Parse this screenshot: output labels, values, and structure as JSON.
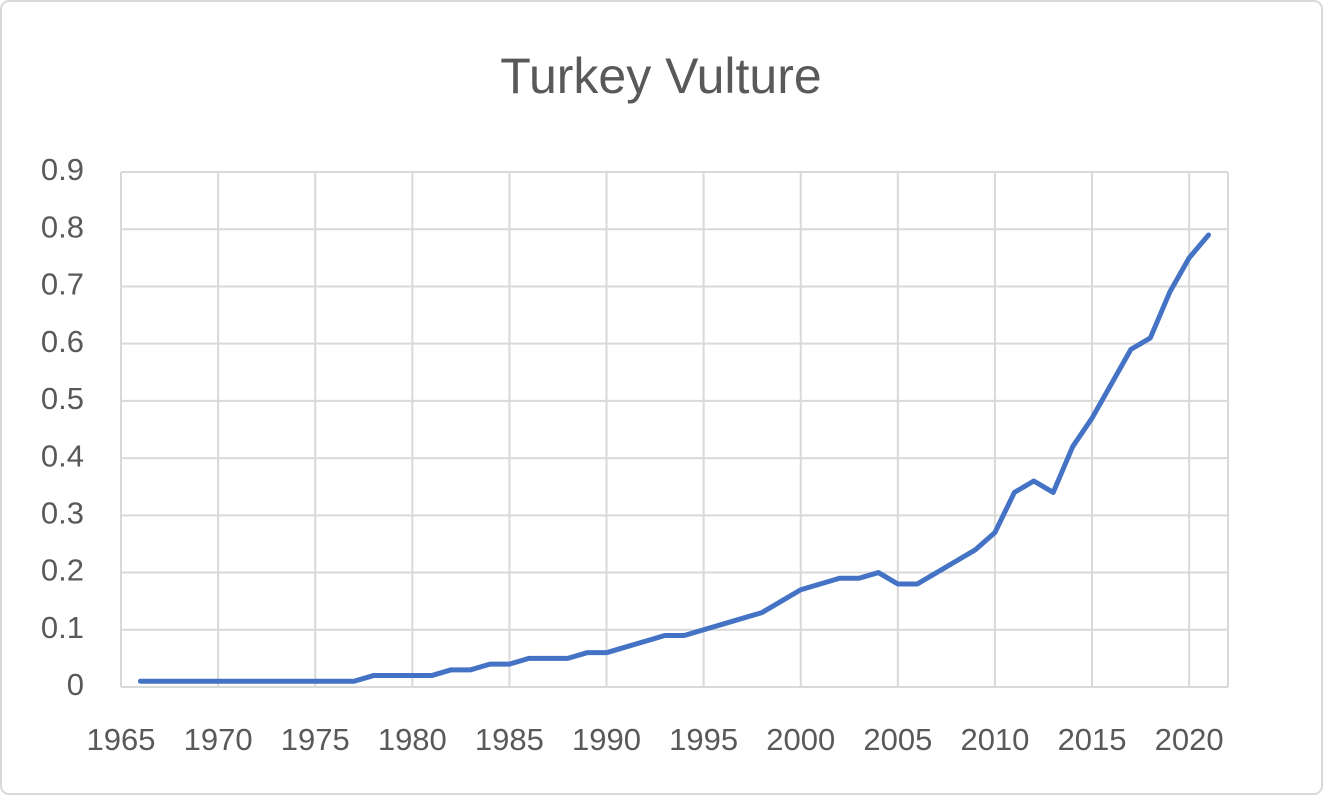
{
  "chart_data": {
    "type": "line",
    "title": "Turkey Vulture",
    "x": [
      1966,
      1967,
      1968,
      1969,
      1970,
      1971,
      1972,
      1973,
      1974,
      1975,
      1976,
      1977,
      1978,
      1979,
      1980,
      1981,
      1982,
      1983,
      1984,
      1985,
      1986,
      1987,
      1988,
      1989,
      1990,
      1991,
      1992,
      1993,
      1994,
      1995,
      1996,
      1997,
      1998,
      1999,
      2000,
      2001,
      2002,
      2003,
      2004,
      2005,
      2006,
      2007,
      2008,
      2009,
      2010,
      2011,
      2012,
      2013,
      2014,
      2015,
      2016,
      2017,
      2018,
      2019,
      2020,
      2021
    ],
    "series": [
      {
        "color": "#4472c4",
        "values": [
          0.01,
          0.01,
          0.01,
          0.01,
          0.01,
          0.01,
          0.01,
          0.01,
          0.01,
          0.01,
          0.01,
          0.01,
          0.02,
          0.02,
          0.02,
          0.02,
          0.03,
          0.03,
          0.04,
          0.04,
          0.05,
          0.05,
          0.05,
          0.06,
          0.06,
          0.07,
          0.08,
          0.09,
          0.09,
          0.1,
          0.11,
          0.12,
          0.13,
          0.15,
          0.17,
          0.18,
          0.19,
          0.19,
          0.2,
          0.18,
          0.18,
          0.2,
          0.22,
          0.24,
          0.27,
          0.34,
          0.36,
          0.34,
          0.42,
          0.47,
          0.53,
          0.59,
          0.61,
          0.69,
          0.75,
          0.79
        ]
      }
    ],
    "xlim": [
      1965,
      2022
    ],
    "xticks": [
      1965,
      1970,
      1975,
      1980,
      1985,
      1990,
      1995,
      2000,
      2005,
      2010,
      2015,
      2020
    ],
    "ylim": [
      0,
      0.9
    ],
    "yticks": [
      0,
      0.1,
      0.2,
      0.3,
      0.4,
      0.5,
      0.6,
      0.7,
      0.8,
      0.9
    ],
    "grid": true
  }
}
